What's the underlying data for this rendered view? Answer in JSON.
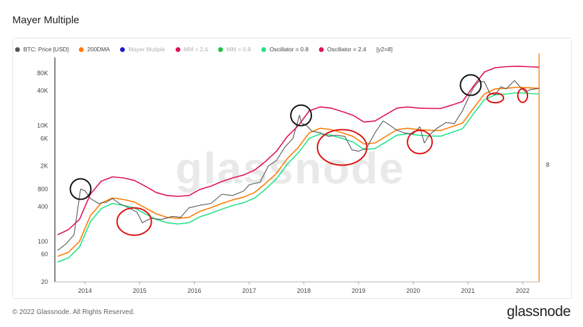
{
  "header": {
    "title": "Mayer Multiple"
  },
  "legend": [
    {
      "label": "BTC: Price [USD]",
      "color": "#555555",
      "dim": false
    },
    {
      "label": "200DMA",
      "color": "#ff7a00",
      "dim": false
    },
    {
      "label": "Mayer Mutiple",
      "color": "#1a1acc",
      "dim": true
    },
    {
      "label": "MM = 2.4",
      "color": "#e0105a",
      "dim": true
    },
    {
      "label": "MM = 0.8",
      "color": "#20c040",
      "dim": true
    },
    {
      "label": "Oscillator = 0.8",
      "color": "#22e38a",
      "dim": false
    },
    {
      "label": "Oscillator = 2.4",
      "color": "#e0105a",
      "dim": false
    },
    {
      "label": "[y2=8]",
      "color": "",
      "dim": false
    }
  ],
  "footer": {
    "copyright": "© 2022 Glassnode. All Rights Reserved.",
    "brand": "glassnode"
  },
  "watermark": "glassnode",
  "chart_data": {
    "type": "line",
    "y_scale": "log",
    "ylim": [
      20,
      150000
    ],
    "xlim": [
      "2013-06-01",
      "2022-06-01"
    ],
    "y_ticks": [
      20,
      60,
      100,
      400,
      800,
      2000,
      6000,
      10000,
      40000,
      80000
    ],
    "y_tick_labels": [
      "20",
      "60",
      "100",
      "400",
      "800",
      "2K",
      "6K",
      "10K",
      "40K",
      "80K"
    ],
    "x_tick_labels": [
      "2014",
      "2015",
      "2016",
      "2017",
      "2018",
      "2019",
      "2020",
      "2021",
      "2022"
    ],
    "y2_tick_labels": [
      "8"
    ],
    "y2_value": 8,
    "series": [
      {
        "name": "BTC: Price [USD]",
        "color": "#555555",
        "x": [
          2013.5,
          2013.65,
          2013.8,
          2013.92,
          2014.0,
          2014.1,
          2014.25,
          2014.4,
          2014.5,
          2014.65,
          2014.8,
          2014.95,
          2015.05,
          2015.2,
          2015.4,
          2015.6,
          2015.75,
          2015.9,
          2016.1,
          2016.3,
          2016.5,
          2016.7,
          2016.9,
          2017.0,
          2017.2,
          2017.35,
          2017.5,
          2017.65,
          2017.8,
          2017.92,
          2017.96,
          2018.05,
          2018.15,
          2018.3,
          2018.45,
          2018.6,
          2018.75,
          2018.88,
          2019.0,
          2019.15,
          2019.3,
          2019.45,
          2019.55,
          2019.7,
          2019.85,
          2020.0,
          2020.12,
          2020.2,
          2020.3,
          2020.45,
          2020.6,
          2020.75,
          2020.9,
          2021.0,
          2021.1,
          2021.2,
          2021.3,
          2021.4,
          2021.5,
          2021.6,
          2021.7,
          2021.85,
          2021.95,
          2022.05,
          2022.15,
          2022.25,
          2022.3
        ],
        "values": [
          70,
          90,
          130,
          800,
          750,
          550,
          450,
          480,
          550,
          440,
          380,
          320,
          210,
          250,
          240,
          270,
          260,
          380,
          420,
          450,
          650,
          620,
          740,
          950,
          1050,
          2000,
          2500,
          4200,
          6000,
          15000,
          11000,
          10000,
          8000,
          7500,
          6500,
          6800,
          6500,
          3800,
          3600,
          4100,
          7500,
          12000,
          10500,
          8300,
          7400,
          7200,
          9500,
          5000,
          7000,
          9200,
          11300,
          10800,
          18000,
          29000,
          45000,
          58000,
          57000,
          36000,
          34000,
          47000,
          43000,
          60000,
          47000,
          38000,
          42000,
          43000,
          44000
        ]
      },
      {
        "name": "200DMA",
        "color": "#ff7a00",
        "x": [
          2013.5,
          2013.7,
          2013.9,
          2014.1,
          2014.3,
          2014.5,
          2014.7,
          2014.9,
          2015.1,
          2015.3,
          2015.5,
          2015.7,
          2015.9,
          2016.1,
          2016.3,
          2016.5,
          2016.7,
          2016.9,
          2017.1,
          2017.3,
          2017.5,
          2017.7,
          2017.9,
          2018.1,
          2018.3,
          2018.5,
          2018.7,
          2018.9,
          2019.1,
          2019.3,
          2019.5,
          2019.7,
          2019.9,
          2020.1,
          2020.3,
          2020.5,
          2020.7,
          2020.9,
          2021.1,
          2021.3,
          2021.5,
          2021.7,
          2021.9,
          2022.1,
          2022.3
        ],
        "values": [
          55,
          65,
          100,
          280,
          460,
          560,
          530,
          480,
          380,
          300,
          260,
          250,
          260,
          330,
          380,
          450,
          520,
          580,
          700,
          1000,
          1500,
          2700,
          4200,
          7500,
          9000,
          8500,
          7500,
          6500,
          4800,
          5000,
          6500,
          8500,
          9000,
          8500,
          8300,
          8200,
          9500,
          11000,
          20000,
          35000,
          43000,
          44000,
          46000,
          45000,
          44000
        ]
      },
      {
        "name": "Oscillator = 2.4",
        "color": "#e0105a",
        "x": [
          2013.5,
          2013.7,
          2013.9,
          2014.1,
          2014.3,
          2014.5,
          2014.7,
          2014.9,
          2015.1,
          2015.3,
          2015.5,
          2015.7,
          2015.9,
          2016.1,
          2016.3,
          2016.5,
          2016.7,
          2016.9,
          2017.1,
          2017.3,
          2017.5,
          2017.7,
          2017.9,
          2018.1,
          2018.3,
          2018.5,
          2018.7,
          2018.9,
          2019.1,
          2019.3,
          2019.5,
          2019.7,
          2019.9,
          2020.1,
          2020.3,
          2020.5,
          2020.7,
          2020.9,
          2021.1,
          2021.3,
          2021.5,
          2021.7,
          2021.9,
          2022.1,
          2022.3
        ],
        "values": [
          130,
          160,
          240,
          660,
          1100,
          1300,
          1250,
          1130,
          900,
          700,
          620,
          600,
          620,
          790,
          900,
          1080,
          1250,
          1400,
          1700,
          2400,
          3600,
          6500,
          10000,
          18000,
          21000,
          20000,
          17500,
          15000,
          11500,
          12000,
          15500,
          20000,
          21000,
          20000,
          19800,
          19700,
          22500,
          26000,
          48000,
          84000,
          100000,
          104000,
          106000,
          104000,
          102000
        ]
      },
      {
        "name": "Oscillator = 0.8",
        "color": "#22e38a",
        "x": [
          2013.5,
          2013.7,
          2013.9,
          2014.1,
          2014.3,
          2014.5,
          2014.7,
          2014.9,
          2015.1,
          2015.3,
          2015.5,
          2015.7,
          2015.9,
          2016.1,
          2016.3,
          2016.5,
          2016.7,
          2016.9,
          2017.1,
          2017.3,
          2017.5,
          2017.7,
          2017.9,
          2018.1,
          2018.3,
          2018.5,
          2018.7,
          2018.9,
          2019.1,
          2019.3,
          2019.5,
          2019.7,
          2019.9,
          2020.1,
          2020.3,
          2020.5,
          2020.7,
          2020.9,
          2021.1,
          2021.3,
          2021.5,
          2021.7,
          2021.9,
          2022.1,
          2022.3
        ],
        "values": [
          44,
          52,
          80,
          220,
          370,
          450,
          420,
          380,
          300,
          240,
          210,
          200,
          210,
          265,
          305,
          360,
          415,
          465,
          560,
          800,
          1200,
          2160,
          3400,
          6000,
          7200,
          6800,
          6000,
          5200,
          3850,
          4000,
          5200,
          6800,
          7200,
          6800,
          6600,
          6550,
          7600,
          8800,
          16000,
          28000,
          34000,
          35000,
          37000,
          36000,
          35000
        ]
      }
    ],
    "annotations": [
      {
        "type": "circle",
        "color": "#111111",
        "x": 2013.92,
        "y": 800
      },
      {
        "type": "circle",
        "color": "#111111",
        "x": 2017.95,
        "y": 15000
      },
      {
        "type": "circle",
        "color": "#111111",
        "x": 2021.05,
        "y": 50000
      },
      {
        "type": "ellipse",
        "color": "#dd1111",
        "x": 2014.9,
        "y": 220
      },
      {
        "type": "ellipse",
        "color": "#dd1111",
        "x": 2018.7,
        "y": 4200
      },
      {
        "type": "ellipse",
        "color": "#dd1111",
        "x": 2020.12,
        "y": 5200
      },
      {
        "type": "ellipse",
        "color": "#dd1111",
        "x": 2021.5,
        "y": 30000
      },
      {
        "type": "ellipse",
        "color": "#dd1111",
        "x": 2022.0,
        "y": 33000
      }
    ]
  }
}
